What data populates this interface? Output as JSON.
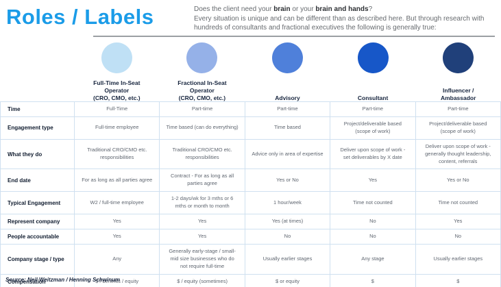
{
  "header": {
    "title": "Roles / Labels",
    "intro": {
      "prefix": "Does the client need your ",
      "bold1": "brain",
      "mid": " or your ",
      "bold2": "brain and hands",
      "suffix": "?",
      "body": "Every situation is unique and can be different than as described here. But through research with hundreds of consultants and fractional executives the following is generally true:"
    }
  },
  "columns": [
    {
      "label": "Full-Time In-Seat\nOperator\n(CRO, CMO, etc.)",
      "color": "#bfe0f5"
    },
    {
      "label": "Fractional In-Seat\nOperator\n(CRO, CMO, etc.)",
      "color": "#95b1e8"
    },
    {
      "label": "Advisory",
      "color": "#4f80da"
    },
    {
      "label": "Consultant",
      "color": "#1757c8"
    },
    {
      "label": "Influencer /\nAmbassador",
      "color": "#20407a"
    }
  ],
  "rows": [
    {
      "label": "Time",
      "cells": [
        "Full-Time",
        "Part-time",
        "Part-time",
        "Part-time",
        "Part-time"
      ]
    },
    {
      "label": "Engagement type",
      "cells": [
        "Full-time employee",
        "Time based (can do everything)",
        "Time based",
        "Project/deliverable based (scope of work)",
        "Project/deliverable based (scope of work)"
      ]
    },
    {
      "label": "What they do",
      "cells": [
        "Traditional CRO/CMO etc. responsibilities",
        "Traditional CRO/CMO etc. responsibilities",
        "Advice only in area of expertise",
        "Deliver upon scope of work - set deliverables by X date",
        "Deliver upon scope of work - generally thought leadership, content, referrals"
      ]
    },
    {
      "label": "End date",
      "cells": [
        "For as long as all parties agree",
        "Contract - For as long as all parties agree",
        "Yes or No",
        "Yes",
        "Yes or No"
      ]
    },
    {
      "label": "Typical Engagement",
      "cells": [
        "W2 / full-time employee",
        "1-2 days/wk for 3 mths or 6 mths or month to month",
        "1 hour/week",
        "Time not counted",
        "Time not counted"
      ]
    },
    {
      "label": "Represent company",
      "cells": [
        "Yes",
        "Yes",
        "Yes (at times)",
        "No",
        "Yes"
      ]
    },
    {
      "label": "People accountable",
      "cells": [
        "Yes",
        "Yes",
        "No",
        "No",
        "No"
      ]
    },
    {
      "label": "Company stage / type",
      "cells": [
        "Any",
        "Generally early-stage / small-mid size businesses who do not require full-time",
        "Usually earlier stages",
        "Any stage",
        "Usually earlier stages"
      ]
    },
    {
      "label": "Compensation",
      "cells": [
        "$ / benefits / equity",
        "$ / equity (sometimes)",
        "$ or equity",
        "$",
        "$"
      ]
    }
  ],
  "footer": {
    "source": "Source: Neil Weitzman / Henning Schwinum"
  }
}
